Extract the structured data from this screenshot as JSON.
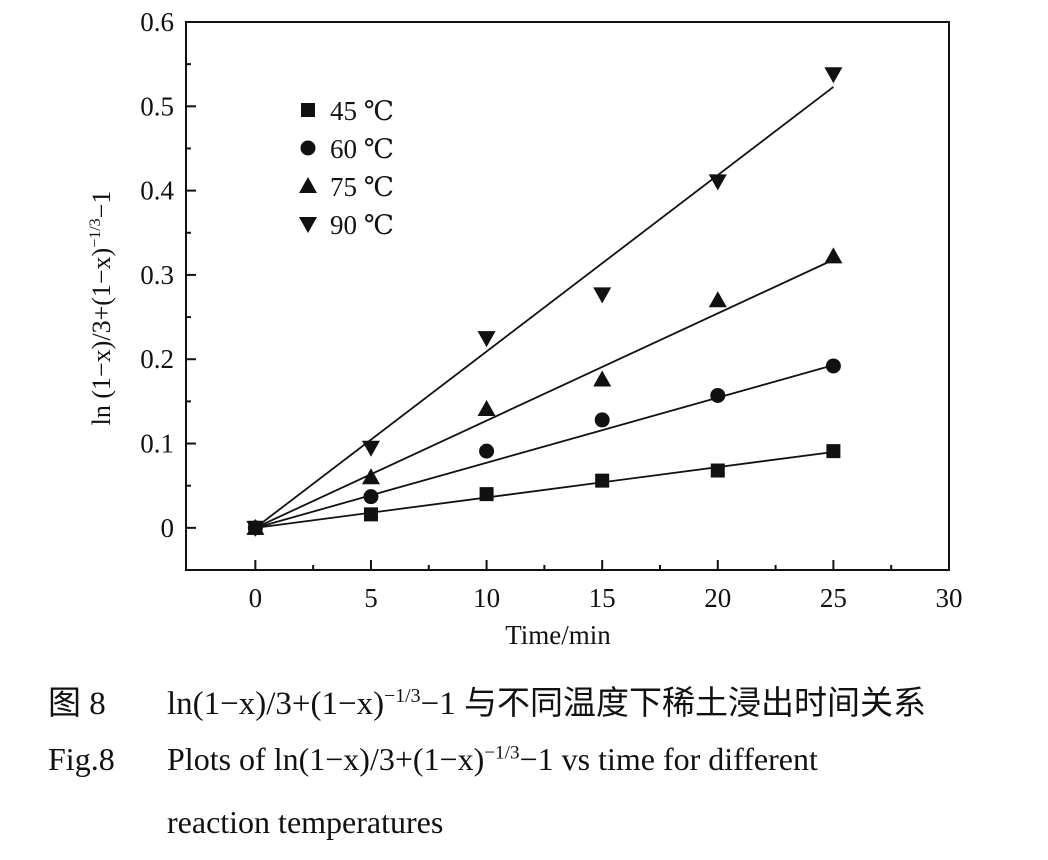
{
  "chart_data": {
    "type": "scatter",
    "xlabel": "Time/min",
    "ylabel": "ln (1−x)/3+(1−x)",
    "ylabel_exp": "−1/3",
    "ylabel_tail": "−1",
    "xlim": [
      -3,
      30
    ],
    "ylim": [
      -0.05,
      0.6
    ],
    "x_ticks": [
      0,
      5,
      10,
      15,
      20,
      25,
      30
    ],
    "y_ticks": [
      0,
      0.1,
      0.2,
      0.3,
      0.4,
      0.5,
      0.6
    ],
    "x_tick_labels": [
      "0",
      "5",
      "10",
      "15",
      "20",
      "25",
      "30"
    ],
    "y_tick_labels": [
      "0",
      "0.1",
      "0.2",
      "0.3",
      "0.4",
      "0.5",
      "0.6"
    ],
    "grid": false,
    "legend_position": "top-left",
    "x": [
      0,
      5,
      10,
      15,
      20,
      25
    ],
    "series": [
      {
        "name": "45 ℃",
        "marker": "square",
        "values": [
          0,
          0.016,
          0.04,
          0.056,
          0.068,
          0.091
        ],
        "fit": [
          0,
          0.09
        ]
      },
      {
        "name": "60 ℃",
        "marker": "circle",
        "values": [
          0,
          0.037,
          0.091,
          0.128,
          0.157,
          0.192
        ],
        "fit": [
          0,
          0.193
        ]
      },
      {
        "name": "75 ℃",
        "marker": "triangle-up",
        "values": [
          0,
          0.06,
          0.141,
          0.176,
          0.27,
          0.322
        ],
        "fit": [
          0,
          0.318
        ]
      },
      {
        "name": "90 ℃",
        "marker": "triangle-down",
        "values": [
          0,
          0.095,
          0.225,
          0.277,
          0.411,
          0.538
        ],
        "fit": [
          0,
          0.523
        ]
      }
    ]
  },
  "caption": {
    "cn_label": "图 8",
    "cn_formula": "ln(1−x)/3+(1−x)",
    "cn_exp": "−1/3",
    "cn_rest": "−1 与不同温度下稀土浸出时间关系",
    "en_label": "Fig.8",
    "en_formula": "Plots of ln(1−x)/3+(1−x)",
    "en_exp": "−1/3",
    "en_rest": "−1 vs time for different",
    "en_line2": "reaction temperatures"
  }
}
